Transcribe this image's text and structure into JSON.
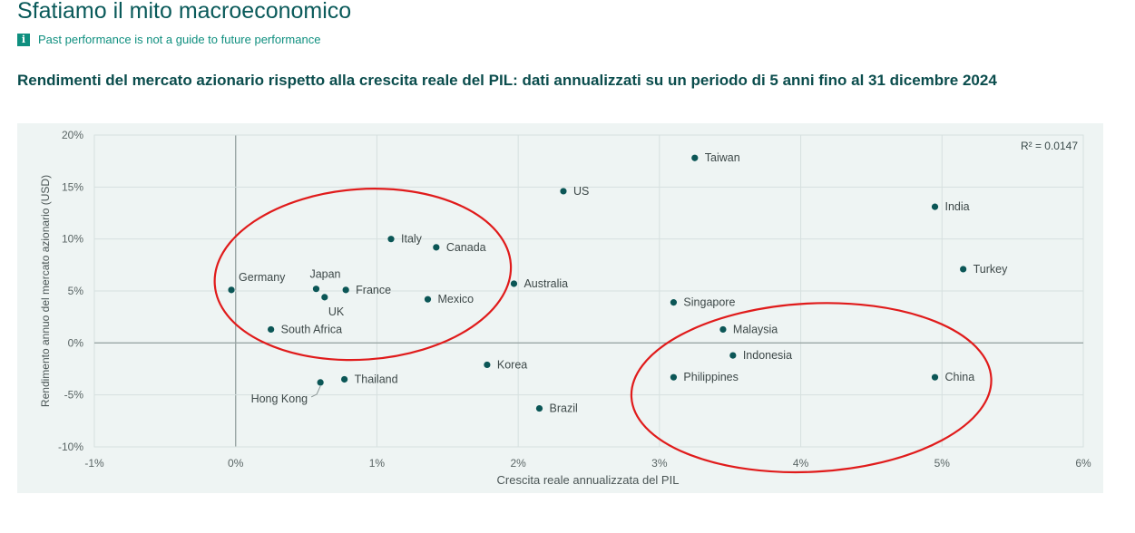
{
  "header": {
    "title": "Sfatiamo il mito macroeconomico",
    "notice": "Past performance is not a guide to future performance",
    "info_icon": "info-icon"
  },
  "chart_data": {
    "type": "scatter",
    "title": "Rendimenti del mercato azionario rispetto alla crescita reale del PIL: dati annualizzati su un periodo di 5 anni fino al 31 dicembre 2024",
    "xlabel": "Crescita reale annualizzata del PIL",
    "ylabel": "Rendimento annuo del mercato azionario (USD)",
    "xlim": [
      -1,
      6
    ],
    "ylim": [
      -10,
      20
    ],
    "x_ticks": [
      -1,
      0,
      1,
      2,
      3,
      4,
      5,
      6
    ],
    "x_tick_labels": [
      "-1%",
      "0%",
      "1%",
      "2%",
      "3%",
      "4%",
      "5%",
      "6%"
    ],
    "y_ticks": [
      -10,
      -5,
      0,
      5,
      10,
      15,
      20
    ],
    "y_tick_labels": [
      "-10%",
      "-5%",
      "0%",
      "5%",
      "10%",
      "15%",
      "20%"
    ],
    "annotation": "R² = 0.0147",
    "grid": true,
    "point_color": "#0b5656",
    "highlight_color": "#e01b1b",
    "points": [
      {
        "label": "Taiwan",
        "x": 3.25,
        "y": 17.8
      },
      {
        "label": "US",
        "x": 2.32,
        "y": 14.6
      },
      {
        "label": "India",
        "x": 4.95,
        "y": 13.1
      },
      {
        "label": "Italy",
        "x": 1.1,
        "y": 10.0
      },
      {
        "label": "Canada",
        "x": 1.42,
        "y": 9.2
      },
      {
        "label": "Turkey",
        "x": 5.15,
        "y": 7.1
      },
      {
        "label": "Australia",
        "x": 1.97,
        "y": 5.7
      },
      {
        "label": "Germany",
        "x": -0.03,
        "y": 5.1
      },
      {
        "label": "Japan",
        "x": 0.57,
        "y": 5.2
      },
      {
        "label": "France",
        "x": 0.78,
        "y": 5.1
      },
      {
        "label": "UK",
        "x": 0.63,
        "y": 4.4
      },
      {
        "label": "Mexico",
        "x": 1.36,
        "y": 4.2
      },
      {
        "label": "Singapore",
        "x": 3.1,
        "y": 3.9
      },
      {
        "label": "South Africa",
        "x": 0.25,
        "y": 1.3
      },
      {
        "label": "Malaysia",
        "x": 3.45,
        "y": 1.3
      },
      {
        "label": "Indonesia",
        "x": 3.52,
        "y": -1.2
      },
      {
        "label": "Korea",
        "x": 1.78,
        "y": -2.1
      },
      {
        "label": "Philippines",
        "x": 3.1,
        "y": -3.3
      },
      {
        "label": "China",
        "x": 4.95,
        "y": -3.3
      },
      {
        "label": "Thailand",
        "x": 0.77,
        "y": -3.5
      },
      {
        "label": "Hong Kong",
        "x": 0.6,
        "y": -3.8
      },
      {
        "label": "Brazil",
        "x": 2.15,
        "y": -6.3
      }
    ]
  }
}
